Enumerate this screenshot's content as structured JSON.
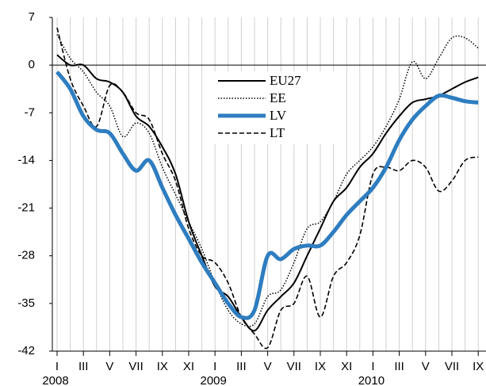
{
  "chart_data": {
    "type": "line",
    "categories": [
      "I",
      null,
      "III",
      null,
      "V",
      null,
      "VII",
      null,
      "IX",
      null,
      "XI",
      null,
      "I",
      null,
      "III",
      null,
      "V",
      null,
      "VII",
      null,
      "IX",
      null,
      "XI",
      null,
      "I",
      null,
      "III",
      null,
      "V",
      null,
      "VII",
      null,
      "IX"
    ],
    "years": [
      "2008",
      "2009",
      "2010"
    ],
    "series": [
      {
        "name": "EU27",
        "color": "#000000",
        "style": "solid",
        "values": [
          1.5,
          0,
          0,
          -2,
          -2.5,
          -4,
          -7.5,
          -9,
          -12,
          -16,
          -23,
          -28,
          -32.5,
          -34,
          -37,
          -39,
          -36,
          -34,
          -32,
          -28,
          -24,
          -20,
          -18,
          -15,
          -13,
          -10,
          -7.5,
          -5.5,
          -5,
          -4.5,
          -3.5,
          -2.5,
          -1.8
        ]
      },
      {
        "name": "EE",
        "color": "#000000",
        "style": "dotted",
        "values": [
          4.5,
          1,
          -1,
          -4,
          -6,
          -10.5,
          -8.5,
          -10,
          -15,
          -19,
          -23,
          -27,
          -32,
          -36,
          -38,
          -38,
          -34,
          -33,
          -29,
          -24,
          -23,
          -20,
          -16,
          -14,
          -12,
          -9,
          -5,
          0.5,
          -2,
          1,
          4,
          4,
          2.5
        ]
      },
      {
        "name": "LV",
        "color": "#2e7dc0",
        "style": "thick",
        "values": [
          -1,
          -3.5,
          -7.5,
          -9.5,
          -10,
          -13,
          -15.5,
          -14,
          -18,
          -22,
          -25.5,
          -29,
          -32,
          -35,
          -37,
          -36,
          -28,
          -28.5,
          -27,
          -26.5,
          -26.5,
          -24.5,
          -22,
          -20,
          -18,
          -15,
          -11,
          -8,
          -6,
          -4.5,
          -4.8,
          -5.3,
          -5.5
        ]
      },
      {
        "name": "LT",
        "color": "#000000",
        "style": "dashed",
        "values": [
          5.5,
          -2,
          -6,
          -9,
          -3,
          -4,
          -7,
          -8,
          -13,
          -17,
          -24,
          -28,
          -29,
          -32,
          -37,
          -39.5,
          -41.5,
          -36,
          -35,
          -31,
          -37,
          -31,
          -29,
          -25,
          -16,
          -15,
          -15.5,
          -14,
          -15,
          -18.5,
          -17,
          -14,
          -13.5
        ]
      }
    ],
    "ylim": [
      -42,
      7
    ],
    "yticks": [
      7,
      0,
      -7,
      -14,
      -21,
      -28,
      -35,
      -42
    ],
    "grid": true,
    "legend": "top-center"
  }
}
